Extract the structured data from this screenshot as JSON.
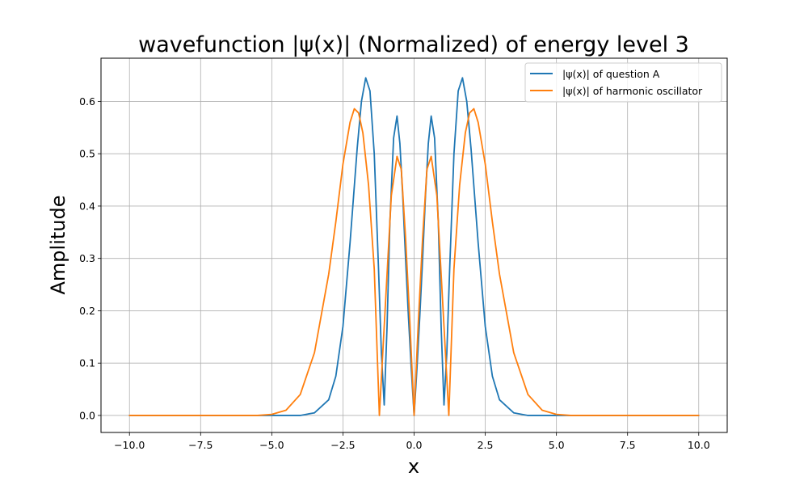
{
  "chart_data": {
    "type": "line",
    "title": "wavefunction |ψ(x)| (Normalized) of energy level 3",
    "xlabel": "x",
    "ylabel": "Amplitude",
    "xlim": [
      -11.0,
      11.0
    ],
    "ylim": [
      -0.0325,
      0.6825
    ],
    "x_ticks": [
      -10.0,
      -7.5,
      -5.0,
      -2.5,
      0.0,
      2.5,
      5.0,
      7.5,
      10.0
    ],
    "x_tick_labels": [
      "−10.0",
      "−7.5",
      "−5.0",
      "−2.5",
      "0.0",
      "2.5",
      "5.0",
      "7.5",
      "10.0"
    ],
    "y_ticks": [
      0.0,
      0.1,
      0.2,
      0.3,
      0.4,
      0.5,
      0.6
    ],
    "y_tick_labels": [
      "0.0",
      "0.1",
      "0.2",
      "0.3",
      "0.4",
      "0.5",
      "0.6"
    ],
    "grid": true,
    "legend_position": "top-right",
    "series": [
      {
        "name": "|ψ(x)| of question A",
        "color": "#1f77b4",
        "x": [
          -10.0,
          -5.0,
          -4.5,
          -4.0,
          -3.5,
          -3.0,
          -2.75,
          -2.5,
          -2.25,
          -2.0,
          -1.85,
          -1.7,
          -1.55,
          -1.4,
          -1.25,
          -1.15,
          -1.05,
          -0.95,
          -0.85,
          -0.72,
          -0.6,
          -0.5,
          -0.4,
          -0.3,
          -0.2,
          -0.1,
          0.0,
          0.1,
          0.2,
          0.3,
          0.4,
          0.5,
          0.6,
          0.72,
          0.85,
          0.95,
          1.05,
          1.15,
          1.25,
          1.4,
          1.55,
          1.7,
          1.85,
          2.0,
          2.25,
          2.5,
          2.75,
          3.0,
          3.5,
          4.0,
          4.5,
          5.0,
          10.0
        ],
        "y": [
          0.0,
          0.0,
          0.0,
          0.0,
          0.005,
          0.03,
          0.075,
          0.17,
          0.33,
          0.51,
          0.6,
          0.645,
          0.62,
          0.5,
          0.28,
          0.12,
          0.02,
          0.17,
          0.37,
          0.53,
          0.572,
          0.52,
          0.42,
          0.3,
          0.19,
          0.09,
          0.0,
          0.09,
          0.19,
          0.3,
          0.42,
          0.52,
          0.572,
          0.53,
          0.37,
          0.17,
          0.02,
          0.12,
          0.28,
          0.5,
          0.62,
          0.645,
          0.6,
          0.51,
          0.33,
          0.17,
          0.075,
          0.03,
          0.005,
          0.0,
          0.0,
          0.0,
          0.0
        ]
      },
      {
        "name": "|ψ(x)| of harmonic oscillator",
        "color": "#ff7f0e",
        "x": [
          -10.0,
          -5.5,
          -5.0,
          -4.5,
          -4.0,
          -3.5,
          -3.0,
          -2.75,
          -2.5,
          -2.25,
          -2.1,
          -1.95,
          -1.8,
          -1.6,
          -1.4,
          -1.22,
          -1.0,
          -0.8,
          -0.6,
          -0.45,
          -0.3,
          -0.15,
          0.0,
          0.15,
          0.3,
          0.45,
          0.6,
          0.8,
          1.0,
          1.22,
          1.4,
          1.6,
          1.8,
          1.95,
          2.1,
          2.25,
          2.5,
          2.75,
          3.0,
          3.5,
          4.0,
          4.5,
          5.0,
          5.5,
          10.0
        ],
        "y": [
          0.0,
          0.0,
          0.002,
          0.01,
          0.04,
          0.12,
          0.27,
          0.37,
          0.48,
          0.56,
          0.586,
          0.578,
          0.54,
          0.44,
          0.28,
          0.0,
          0.22,
          0.42,
          0.495,
          0.47,
          0.34,
          0.18,
          0.0,
          0.18,
          0.34,
          0.47,
          0.495,
          0.42,
          0.22,
          0.0,
          0.28,
          0.44,
          0.54,
          0.578,
          0.586,
          0.56,
          0.48,
          0.37,
          0.27,
          0.12,
          0.04,
          0.01,
          0.002,
          0.0,
          0.0
        ]
      }
    ]
  }
}
